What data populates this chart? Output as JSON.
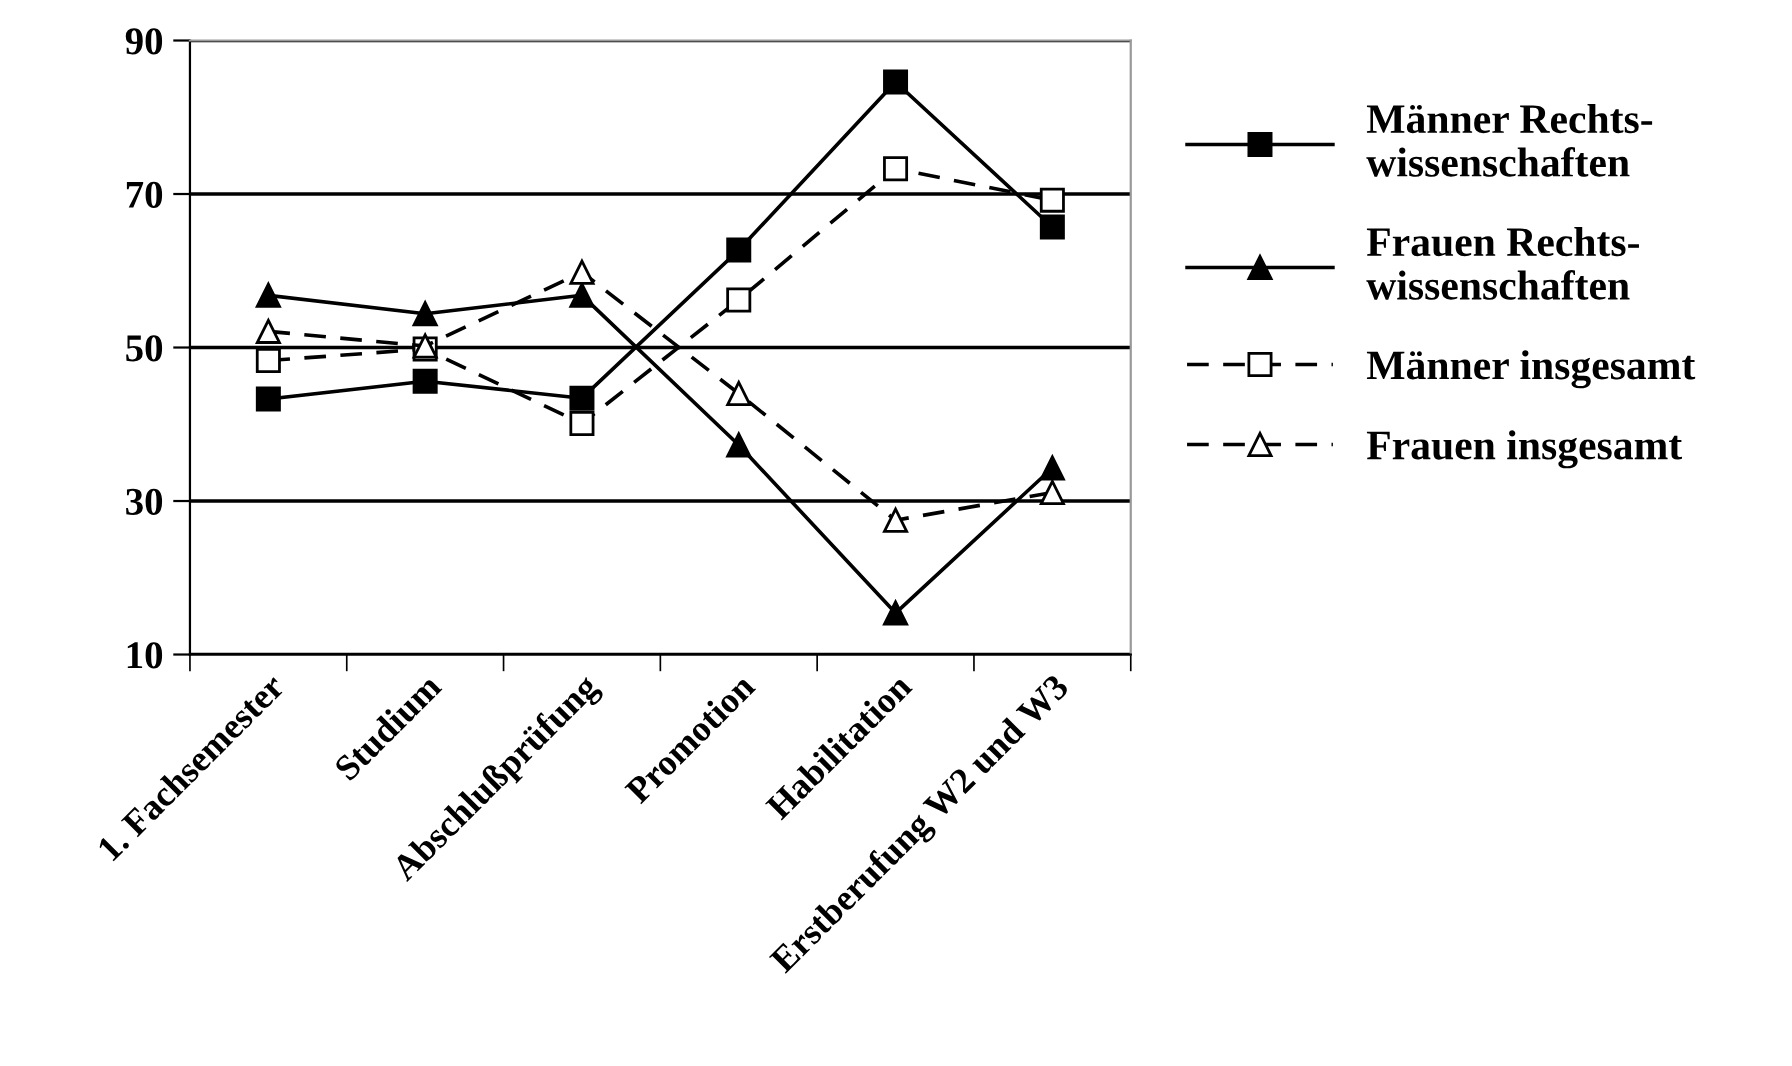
{
  "chart_data": {
    "type": "line",
    "categories": [
      "1. Fachsemester",
      "Studium",
      "Abschlußprüfung",
      "Promotion",
      "Habilitation",
      "Erstberufung W2 und W3"
    ],
    "series": [
      {
        "name": "Männer Rechts-\nwissenschaften",
        "color": "#000000",
        "line_style": "solid",
        "marker": "square",
        "values": [
          43.3,
          45.6,
          43.4,
          62.7,
          84.6,
          65.7
        ]
      },
      {
        "name": "Frauen Rechts-\nwissenschaften",
        "color": "#000000",
        "line_style": "solid",
        "marker": "triangle",
        "values": [
          56.8,
          54.4,
          56.8,
          37.3,
          15.4,
          34.3
        ]
      },
      {
        "name": "Männer insgesamt",
        "color": "#000000",
        "line_style": "dashed",
        "marker": "square",
        "values": [
          48.3,
          49.8,
          40.1,
          56.2,
          73.3,
          69.2
        ]
      },
      {
        "name": "Frauen insgesamt",
        "color": "#000000",
        "line_style": "dashed",
        "marker": "triangle",
        "values": [
          52.1,
          50.2,
          59.8,
          44.0,
          27.5,
          31.1
        ]
      }
    ],
    "ylim": [
      10,
      90
    ],
    "yticks": [
      10,
      30,
      50,
      70,
      90
    ],
    "grid": "y",
    "legend": "right"
  }
}
